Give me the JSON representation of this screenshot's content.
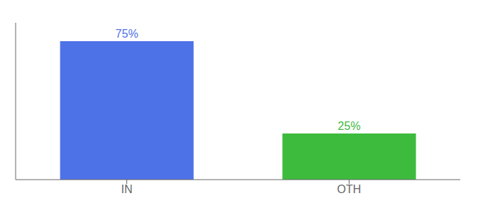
{
  "chart_data": {
    "type": "bar",
    "categories": [
      "IN",
      "OTH"
    ],
    "values": [
      75,
      25
    ],
    "value_labels": [
      "75%",
      "25%"
    ],
    "colors": [
      "#4d72e8",
      "#3dbb3d"
    ],
    "ylim": [
      0,
      85
    ],
    "data_labels": true,
    "tick_labels": "x",
    "grid": false
  }
}
